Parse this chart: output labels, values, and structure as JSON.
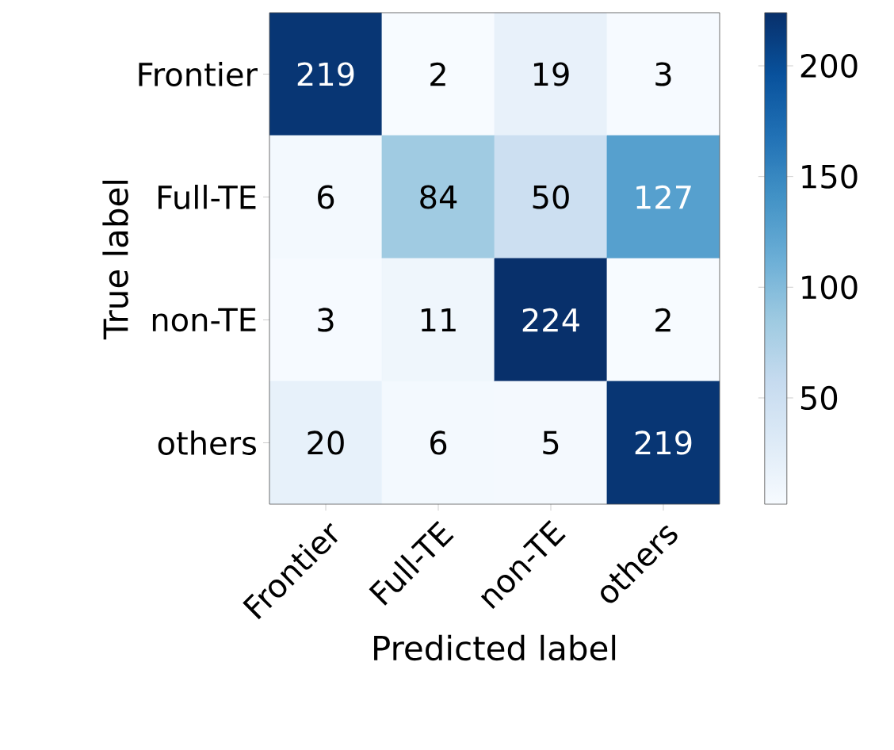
{
  "chart_data": {
    "type": "heatmap",
    "xlabel": "Predicted label",
    "ylabel": "True label",
    "categories": [
      "Frontier",
      "Full-TE",
      "non-TE",
      "others"
    ],
    "y_categories": [
      "Frontier",
      "Full-TE",
      "non-TE",
      "others"
    ],
    "cells": [
      [
        219,
        2,
        19,
        3
      ],
      [
        6,
        84,
        50,
        127
      ],
      [
        3,
        11,
        224,
        2
      ],
      [
        20,
        6,
        5,
        219
      ]
    ],
    "data_labels": true,
    "clim": [
      2,
      224
    ],
    "cticks": [
      50,
      100,
      150,
      200
    ]
  }
}
